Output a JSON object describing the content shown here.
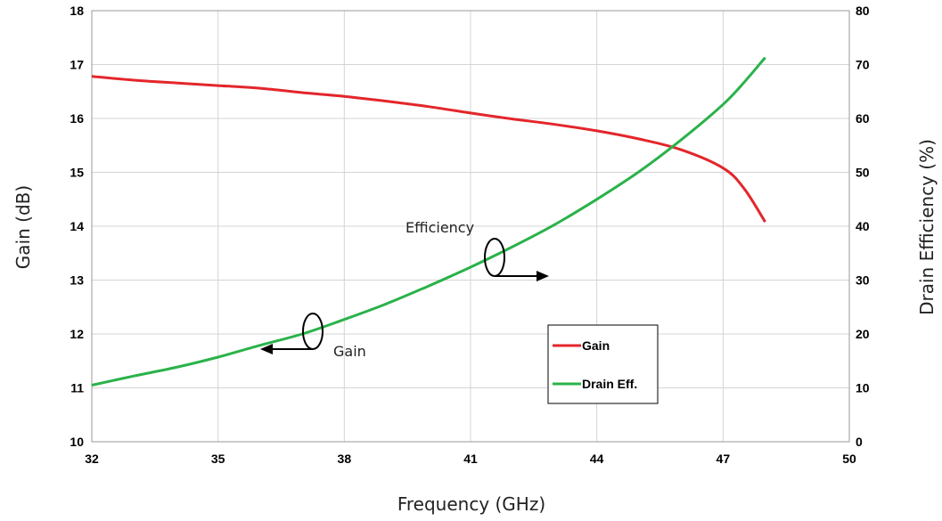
{
  "chart_data": {
    "type": "line",
    "xlabel": "Frequency (GHz)",
    "ylabel_left": "Gain (dB)",
    "ylabel_right": "Drain Efficiency (%)",
    "xlim": [
      32,
      50
    ],
    "ylim_left": [
      10,
      18
    ],
    "ylim_right": [
      0,
      80
    ],
    "x_ticks": [
      32,
      35,
      38,
      41,
      44,
      47,
      50
    ],
    "y_left_ticks": [
      10,
      11,
      12,
      13,
      14,
      15,
      16,
      17,
      18
    ],
    "y_right_ticks": [
      0,
      10,
      20,
      30,
      40,
      50,
      60,
      70,
      80
    ],
    "grid": true,
    "legend_position": "center-right",
    "series": [
      {
        "name": "Gain",
        "axis": "left",
        "color": "#e3262b",
        "x": [
          32,
          33,
          34,
          35,
          36,
          37,
          38,
          39,
          40,
          41,
          42,
          43,
          44,
          45,
          46,
          47,
          47.5,
          48
        ],
        "values": [
          16.78,
          16.71,
          16.66,
          16.61,
          16.56,
          16.48,
          16.41,
          16.32,
          16.22,
          16.1,
          15.99,
          15.89,
          15.77,
          15.62,
          15.42,
          15.08,
          14.7,
          14.08
        ]
      },
      {
        "name": "Drain Eff.",
        "axis": "right",
        "color": "#2ab24a",
        "x": [
          32,
          33,
          34,
          35,
          36,
          37,
          38,
          39,
          40,
          41,
          42,
          43,
          44,
          45,
          46,
          47,
          47.5,
          48
        ],
        "values": [
          10.5,
          12.2,
          13.8,
          15.7,
          17.9,
          20.0,
          22.7,
          25.6,
          28.9,
          32.4,
          36.2,
          40.3,
          45.0,
          50.1,
          56.0,
          62.6,
          66.7,
          71.3
        ]
      }
    ],
    "annotations": [
      {
        "text": "Efficiency",
        "points_to": "right-axis"
      },
      {
        "text": "Gain",
        "points_to": "left-axis"
      }
    ]
  }
}
